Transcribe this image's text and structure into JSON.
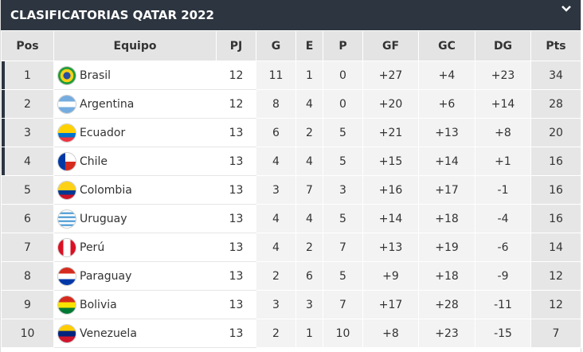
{
  "header": {
    "title": "CLASIFICATORIAS QATAR 2022"
  },
  "table": {
    "columns": [
      "Pos",
      "Equipo",
      "PJ",
      "G",
      "E",
      "P",
      "GF",
      "GC",
      "DG",
      "Pts"
    ],
    "rows": [
      [
        "1",
        "Brasil",
        "12",
        "11",
        "1",
        "0",
        "+27",
        "+4",
        "+23",
        "34"
      ],
      [
        "2",
        "Argentina",
        "12",
        "8",
        "4",
        "0",
        "+20",
        "+6",
        "+14",
        "28"
      ],
      [
        "3",
        "Ecuador",
        "13",
        "6",
        "2",
        "5",
        "+21",
        "+13",
        "+8",
        "20"
      ],
      [
        "4",
        "Chile",
        "13",
        "4",
        "4",
        "5",
        "+15",
        "+14",
        "+1",
        "16"
      ],
      [
        "5",
        "Colombia",
        "13",
        "3",
        "7",
        "3",
        "+16",
        "+17",
        "-1",
        "16"
      ],
      [
        "6",
        "Uruguay",
        "13",
        "4",
        "4",
        "5",
        "+14",
        "+18",
        "-4",
        "16"
      ],
      [
        "7",
        "Perú",
        "13",
        "4",
        "2",
        "7",
        "+13",
        "+19",
        "-6",
        "14"
      ],
      [
        "8",
        "Paraguay",
        "13",
        "2",
        "6",
        "5",
        "+9",
        "+18",
        "-9",
        "12"
      ],
      [
        "9",
        "Bolivia",
        "13",
        "3",
        "3",
        "7",
        "+17",
        "+28",
        "-11",
        "12"
      ],
      [
        "10",
        "Venezuela",
        "13",
        "2",
        "1",
        "10",
        "+8",
        "+23",
        "-15",
        "7"
      ]
    ]
  }
}
